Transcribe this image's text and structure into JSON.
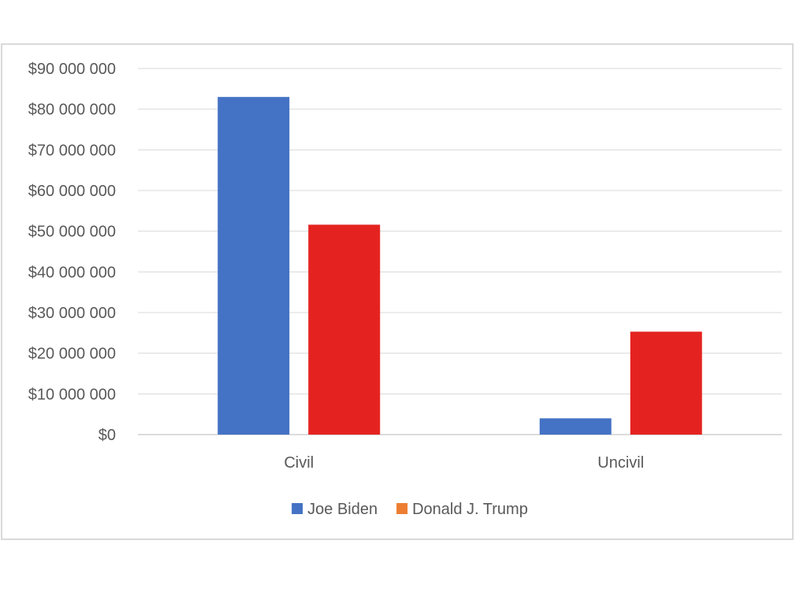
{
  "chart_data": {
    "type": "bar",
    "title": "",
    "xlabel": "",
    "ylabel": "",
    "categories": [
      "Civil",
      "Uncivil"
    ],
    "series": [
      {
        "name": "Joe Biden",
        "color": "#4472c4",
        "legend_color": "#4472c4",
        "values": [
          83000000,
          4000000
        ]
      },
      {
        "name": "Donald J. Trump",
        "color": "#e42320",
        "legend_color": "#ed7d31",
        "values": [
          51600000,
          25300000
        ]
      }
    ],
    "ylim": [
      0,
      90000000
    ],
    "yticks": [
      0,
      10000000,
      20000000,
      30000000,
      40000000,
      50000000,
      60000000,
      70000000,
      80000000,
      90000000
    ],
    "ytick_labels": [
      "$0",
      "$10 000 000",
      "$20 000 000",
      "$30 000 000",
      "$40 000 000",
      "$50 000 000",
      "$60 000 000",
      "$70 000 000",
      "$80 000 000",
      "$90 000 000"
    ],
    "grid": true,
    "legend_position": "bottom"
  }
}
